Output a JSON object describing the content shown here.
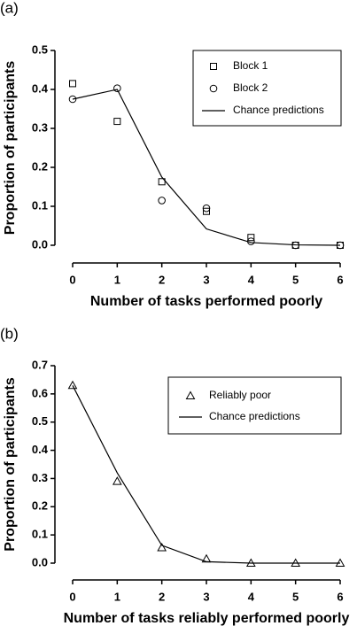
{
  "chart_data": [
    {
      "type": "scatter",
      "panel_label": "(a)",
      "x_label": "Number of tasks performed poorly",
      "y_label": "Proportion of participants",
      "x": [
        0,
        1,
        2,
        3,
        4,
        5,
        6
      ],
      "series": [
        {
          "name": "Block 1",
          "color": "#000000",
          "marker": "square",
          "values": [
            0.415,
            0.318,
            0.163,
            0.087,
            0.02,
            0.0,
            0.0
          ]
        },
        {
          "name": "Block 2",
          "color": "#000000",
          "marker": "circle",
          "values": [
            0.375,
            0.403,
            0.115,
            0.095,
            0.01,
            0.0,
            0.0
          ]
        },
        {
          "name": "Chance predictions",
          "color": "#000000",
          "marker": "line",
          "values": [
            0.375,
            0.4,
            0.175,
            0.042,
            0.007,
            0.001,
            0.0
          ]
        }
      ],
      "xlim": [
        0,
        6
      ],
      "xticks": [
        0,
        1,
        2,
        3,
        4,
        5,
        6
      ],
      "ylim": [
        0,
        0.5
      ],
      "yticks": [
        {
          "value": 0,
          "label": "0.0"
        },
        0.1,
        0.2,
        0.3,
        0.4,
        0.5
      ],
      "legend": "upper right"
    },
    {
      "type": "scatter",
      "panel_label": "(b)",
      "x_label": "Number of tasks reliably performed poorly",
      "y_label": "Proportion of participants",
      "x": [
        0,
        1,
        2,
        3,
        4,
        5,
        6
      ],
      "series": [
        {
          "name": "Reliably poor",
          "color": "#000000",
          "marker": "triangle",
          "values": [
            0.63,
            0.29,
            0.055,
            0.015,
            0.0,
            0.0,
            0.0
          ]
        },
        {
          "name": "Chance predictions",
          "color": "#000000",
          "marker": "line",
          "values": [
            0.63,
            0.32,
            0.063,
            0.005,
            0.0,
            0.0,
            0.0
          ]
        }
      ],
      "xlim": [
        0,
        6
      ],
      "xticks": [
        0,
        1,
        2,
        3,
        4,
        5,
        6
      ],
      "ylim": [
        0,
        0.7
      ],
      "yticks": [
        {
          "value": 0,
          "label": "0.0"
        },
        0.1,
        0.2,
        0.3,
        0.4,
        0.5,
        0.6,
        0.7
      ],
      "legend": "upper right"
    }
  ]
}
